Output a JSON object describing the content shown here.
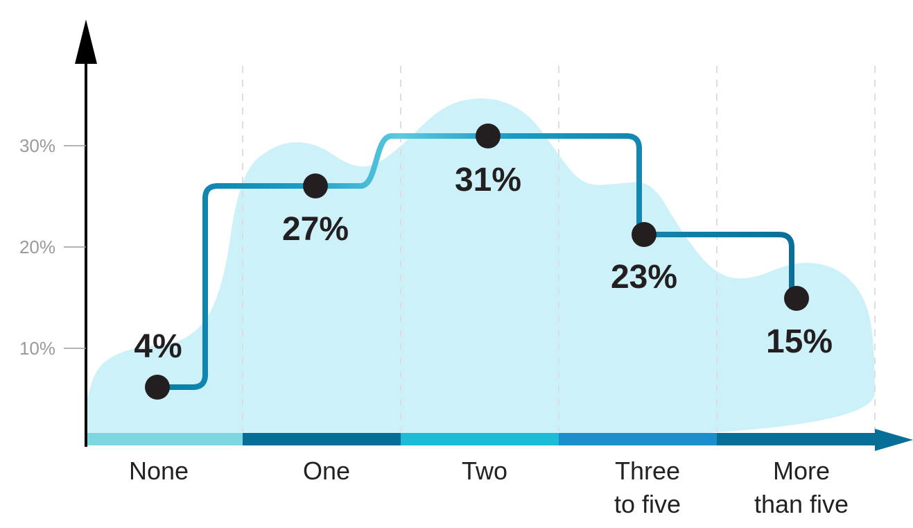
{
  "chart_data": {
    "type": "line",
    "categories": [
      [
        "None"
      ],
      [
        "One"
      ],
      [
        "Two"
      ],
      [
        "Three",
        "to five"
      ],
      [
        "More",
        "than five"
      ]
    ],
    "values": [
      4,
      27,
      31,
      23,
      15
    ],
    "data_labels": [
      "4%",
      "27%",
      "31%",
      "23%",
      "15%"
    ],
    "y_ticks": [
      {
        "value": 10,
        "label": "10%"
      },
      {
        "value": 20,
        "label": "20%"
      },
      {
        "value": 30,
        "label": "30%"
      }
    ],
    "ylim": [
      0,
      40
    ],
    "grid": false,
    "legend": "none",
    "colors": {
      "area": "#ccf1f8",
      "line": "#1596bb",
      "line_light": "#5cc9e0",
      "line_dark": "#0a6e98",
      "marker": "#231f20",
      "axis": "#000000",
      "band": [
        "#7ed7e0",
        "#066d96",
        "#1cbcd6",
        "#1a8fcb",
        "#076f95"
      ],
      "divider": "#dddddd"
    }
  }
}
